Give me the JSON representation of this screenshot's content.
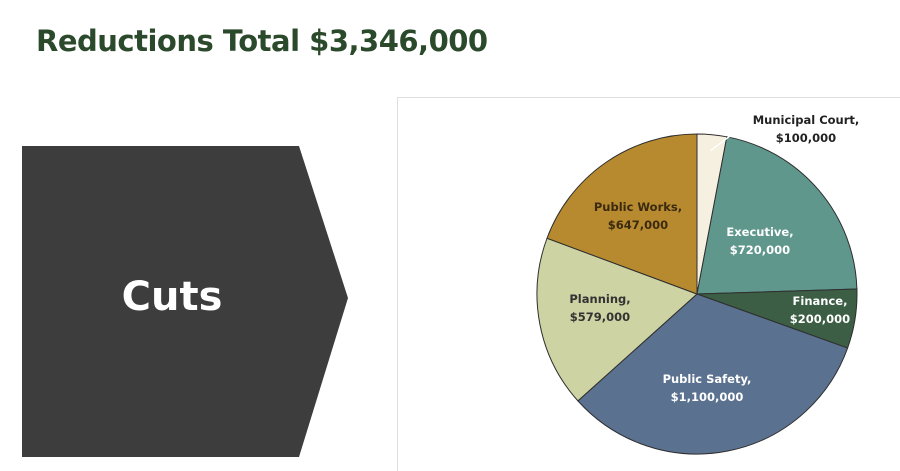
{
  "header": {
    "title": "Reductions Total $3,346,000"
  },
  "arrow": {
    "label": "Cuts",
    "color": "#3d3d3d"
  },
  "chart_data": {
    "type": "pie",
    "title": "",
    "slices": [
      {
        "label": "Municipal Court,",
        "value_label": "$100,000",
        "value": 100000,
        "color": "#f6f0e0",
        "label_color": "#222222"
      },
      {
        "label": "Executive,",
        "value_label": "$720,000",
        "value": 720000,
        "color": "#5f978d",
        "label_color": "#ffffff"
      },
      {
        "label": "Finance,",
        "value_label": "$200,000",
        "value": 200000,
        "color": "#3c5e45",
        "label_color": "#ffffff"
      },
      {
        "label": "Public Safety,",
        "value_label": "$1,100,000",
        "value": 1100000,
        "color": "#5a7190",
        "label_color": "#ffffff"
      },
      {
        "label": "Planning,",
        "value_label": "$579,000",
        "value": 579000,
        "color": "#cdd3a2",
        "label_color": "#333333"
      },
      {
        "label": "Public Works,",
        "value_label": "$647,000",
        "value": 647000,
        "color": "#b88a2f",
        "label_color": "#3a2a10"
      }
    ]
  }
}
